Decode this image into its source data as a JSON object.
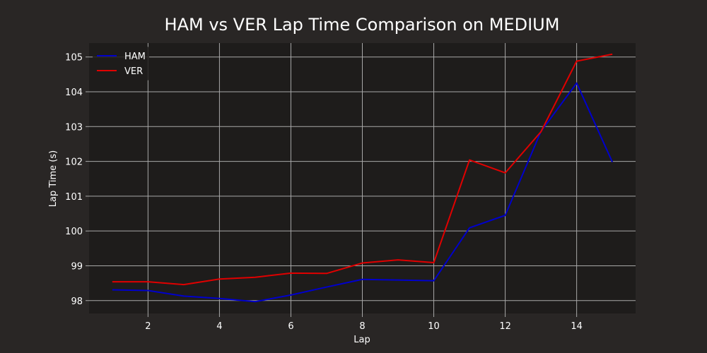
{
  "chart_data": {
    "type": "line",
    "title": "HAM vs VER Lap Time Comparison on MEDIUM",
    "xlabel": "Lap",
    "ylabel": "Lap Time (s)",
    "xlim": [
      0.35,
      15.65
    ],
    "ylim": [
      97.63,
      105.4
    ],
    "x_ticks": [
      2,
      4,
      6,
      8,
      10,
      12,
      14
    ],
    "y_ticks": [
      98,
      99,
      100,
      101,
      102,
      103,
      104,
      105
    ],
    "grid": true,
    "legend_position": "top-left",
    "x": [
      1,
      2,
      3,
      4,
      5,
      6,
      7,
      8,
      9,
      10,
      11,
      12,
      13,
      14,
      15
    ],
    "series": [
      {
        "name": "HAM",
        "color": "#0000cc",
        "values": [
          98.31,
          98.29,
          98.13,
          98.06,
          97.97,
          98.16,
          98.39,
          98.61,
          98.59,
          98.57,
          100.09,
          100.45,
          102.86,
          104.25,
          101.98
        ]
      },
      {
        "name": "VER",
        "color": "#e00000",
        "values": [
          98.54,
          98.54,
          98.46,
          98.62,
          98.67,
          98.79,
          98.78,
          99.08,
          99.17,
          99.09,
          102.04,
          101.67,
          102.85,
          104.88,
          105.08
        ]
      }
    ],
    "colors": {
      "figure_background": "#292625",
      "plot_background": "#1e1c1b",
      "grid": "#a8a8a8",
      "text": "#ffffff"
    }
  }
}
